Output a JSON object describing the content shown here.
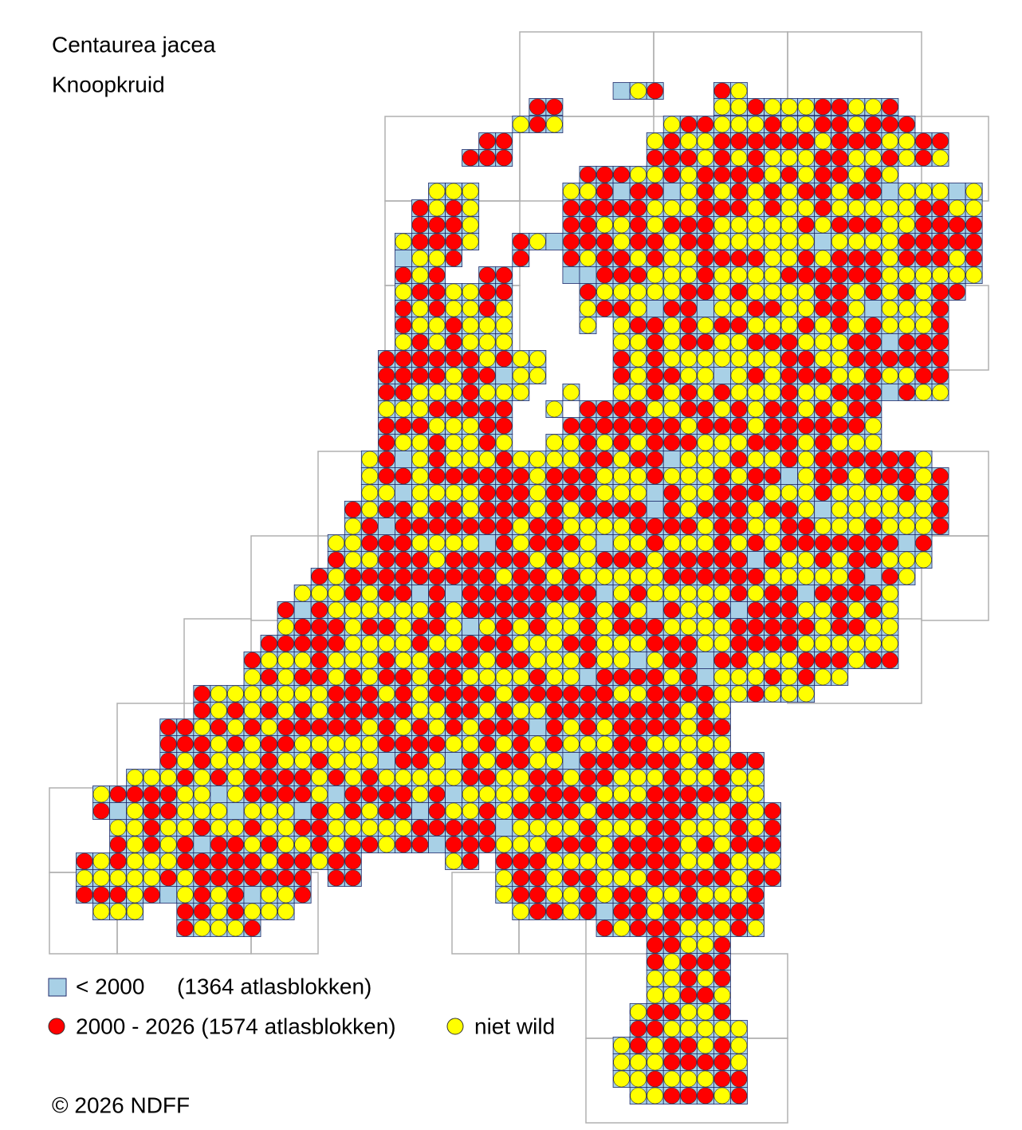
{
  "header": {
    "title": "Centaurea jacea",
    "subtitle": "Knoopkruid"
  },
  "legend": [
    {
      "label": "< 2000",
      "note": "(1364 atlasblokken)",
      "color": "#a8d0e6"
    },
    {
      "label": "2000 - 2026 (1574 atlasblokken)",
      "color": "#ff0000"
    },
    {
      "label": "niet wild",
      "color": "#ffff00"
    }
  ],
  "footer": {
    "copyright": "© 2026 NDFF"
  }
}
